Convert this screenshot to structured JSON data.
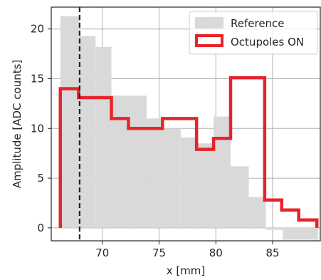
{
  "chart_data": {
    "type": "step-histogram",
    "xlabel": "x [mm]",
    "ylabel": "Amplitude [ADC counts]",
    "xlim": [
      65.5,
      89.2
    ],
    "ylim": [
      -1.3,
      22.2
    ],
    "xticks": [
      70,
      75,
      80,
      85
    ],
    "yticks": [
      0,
      5,
      10,
      15,
      20
    ],
    "grid": true,
    "legend_position": "top-right",
    "vline": {
      "x": 68.0,
      "style": "dashed",
      "color": "#222222"
    },
    "series": [
      {
        "name": "Reference",
        "kind": "filled-bars",
        "color": "#d9d9d9",
        "bins": [
          {
            "x0": 66.3,
            "x1": 68.0,
            "y": 21.3
          },
          {
            "x0": 68.0,
            "x1": 69.4,
            "y": 19.3
          },
          {
            "x0": 69.4,
            "x1": 70.8,
            "y": 18.2
          },
          {
            "x0": 70.8,
            "x1": 72.3,
            "y": 13.3
          },
          {
            "x0": 72.3,
            "x1": 73.9,
            "y": 13.3
          },
          {
            "x0": 73.9,
            "x1": 75.4,
            "y": 11.0
          },
          {
            "x0": 75.4,
            "x1": 76.9,
            "y": 10.0
          },
          {
            "x0": 76.9,
            "x1": 78.3,
            "y": 9.1
          },
          {
            "x0": 78.3,
            "x1": 79.8,
            "y": 8.5
          },
          {
            "x0": 79.8,
            "x1": 81.3,
            "y": 11.2
          },
          {
            "x0": 81.3,
            "x1": 82.9,
            "y": 6.2
          },
          {
            "x0": 82.9,
            "x1": 84.4,
            "y": 3.1
          },
          {
            "x0": 84.4,
            "x1": 85.9,
            "y": -0.2
          },
          {
            "x0": 85.9,
            "x1": 89.0,
            "y": -1.2
          }
        ]
      },
      {
        "name": "Octupoles ON",
        "kind": "step-line",
        "color": "#e8232a",
        "edges": [
          66.3,
          67.9,
          69.3,
          70.8,
          72.3,
          73.8,
          75.3,
          76.8,
          78.3,
          79.8,
          81.3,
          82.9,
          84.3,
          85.8,
          87.3,
          88.9
        ],
        "values": [
          14.0,
          13.1,
          13.1,
          11.0,
          10.0,
          10.0,
          11.0,
          11.0,
          7.9,
          9.0,
          15.1,
          15.1,
          2.8,
          1.8,
          0.8
        ]
      }
    ]
  }
}
